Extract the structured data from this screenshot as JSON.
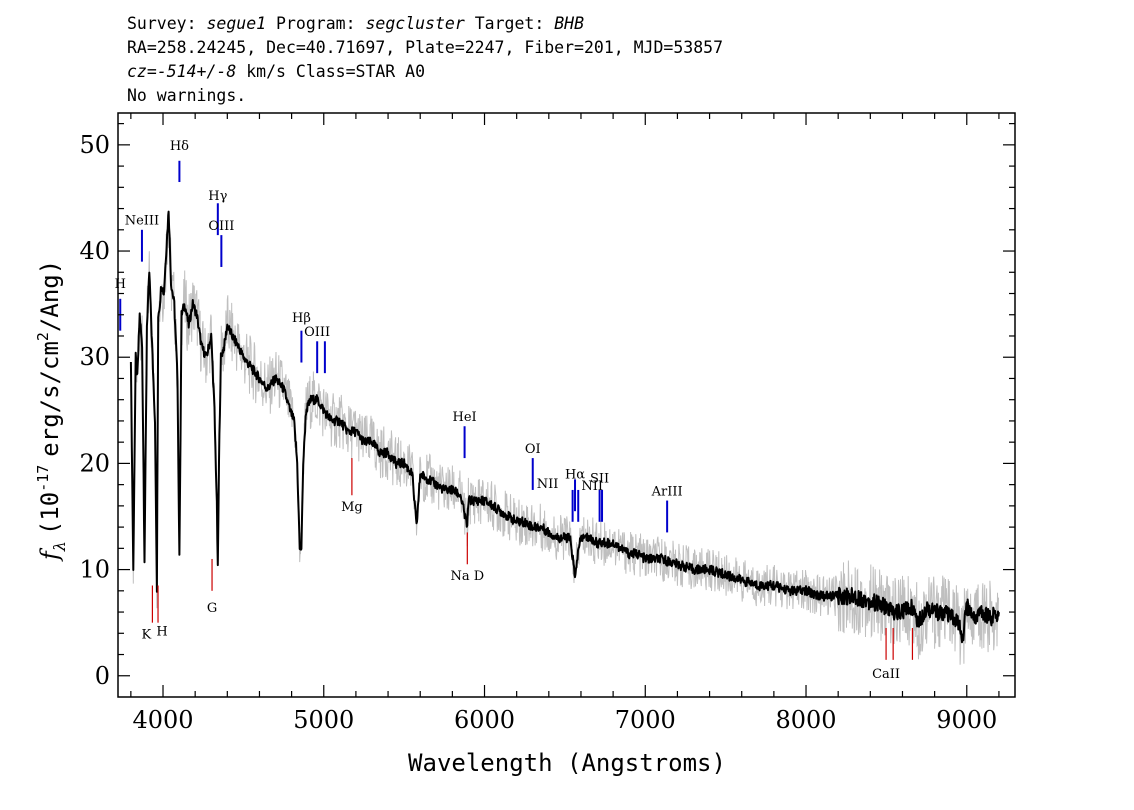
{
  "header": {
    "survey_label": "Survey:",
    "survey": "segue1",
    "program_label": "Program:",
    "program": "segcluster",
    "target_label": "Target:",
    "target": "BHB",
    "line2": "RA=258.24245, Dec=40.71697, Plate=2247, Fiber=201, MJD=53857",
    "cz_prefix": "cz=",
    "cz_value": "-514+/-8",
    "cz_suffix": "km/s Class=STAR A0",
    "warnings": "No warnings."
  },
  "chart_data": {
    "type": "line",
    "xlabel": "Wavelength (Angstroms)",
    "ylabel_prefix": "f",
    "ylabel_sub": "λ",
    "ylabel_units": "(10",
    "ylabel_exp": "-17",
    "ylabel_rest": "erg/s/cm",
    "ylabel_exp2": "2",
    "ylabel_end": "/Ang)",
    "xlim": [
      3720,
      9300
    ],
    "ylim": [
      -2,
      53
    ],
    "xticks": [
      4000,
      5000,
      6000,
      7000,
      8000,
      9000
    ],
    "yticks": [
      0,
      10,
      20,
      30,
      40,
      50
    ],
    "colors": {
      "spectrum": "#000000",
      "noise": "#bfbfbf",
      "emission": "#0000cc",
      "absorption": "#cc0000"
    },
    "series": [
      {
        "style": "spectrum",
        "x": [
          3800,
          3815,
          3830,
          3840,
          3855,
          3870,
          3885,
          3900,
          3915,
          3935,
          3950,
          3962,
          3970,
          3980,
          3990,
          4005,
          4020,
          4035,
          4050,
          4070,
          4090,
          4102,
          4115,
          4135,
          4160,
          4185,
          4210,
          4240,
          4270,
          4300,
          4320,
          4335,
          4341,
          4348,
          4360,
          4380,
          4400,
          4430,
          4470,
          4500,
          4550,
          4600,
          4650,
          4700,
          4750,
          4790,
          4815,
          4835,
          4850,
          4861,
          4872,
          4890,
          4920,
          4960,
          5000,
          5050,
          5100,
          5150,
          5200,
          5250,
          5300,
          5350,
          5400,
          5450,
          5500,
          5550,
          5577,
          5600,
          5650,
          5700,
          5750,
          5800,
          5850,
          5893,
          5900,
          5950,
          6000,
          6050,
          6100,
          6150,
          6200,
          6250,
          6300,
          6350,
          6400,
          6450,
          6500,
          6530,
          6550,
          6563,
          6575,
          6600,
          6650,
          6700,
          6750,
          6800,
          6850,
          6900,
          6950,
          7000,
          7100,
          7200,
          7300,
          7400,
          7500,
          7600,
          7700,
          7800,
          7900,
          8000,
          8100,
          8200,
          8300,
          8400,
          8500,
          8542,
          8600,
          8662,
          8700,
          8750,
          8800,
          8850,
          8900,
          8950,
          8970,
          9000,
          9050,
          9100,
          9150,
          9200
        ],
        "y": [
          30,
          10,
          30,
          28,
          34,
          31,
          11,
          33,
          38,
          30,
          24,
          8,
          34,
          35,
          37,
          36,
          40,
          44,
          37,
          35,
          28,
          11,
          34,
          35,
          33,
          35,
          34,
          31,
          30,
          32,
          25,
          16,
          10,
          20,
          30,
          31,
          33,
          32,
          31,
          30,
          29,
          28,
          27,
          28,
          27,
          25,
          24,
          20,
          12,
          12,
          20,
          25,
          26,
          26,
          25,
          24,
          24,
          23,
          23,
          22,
          22,
          21,
          21,
          20,
          20,
          19,
          14,
          19,
          18.5,
          18,
          17.5,
          17.5,
          17,
          14,
          16.5,
          16.5,
          16.5,
          16,
          15.5,
          15,
          14.5,
          14.5,
          14,
          14,
          13.5,
          13,
          13,
          13,
          11,
          9,
          11,
          13,
          13,
          12.5,
          12.5,
          12.5,
          12,
          11.5,
          11.5,
          11,
          11,
          10.5,
          10,
          10,
          9.5,
          9,
          8.5,
          8.5,
          8,
          8,
          7.5,
          7.5,
          7.5,
          7,
          6.5,
          6,
          6,
          6.5,
          5,
          6.5,
          6,
          6,
          5.5,
          5,
          3,
          6.5,
          5.5,
          6,
          5.5,
          6
        ]
      }
    ],
    "lines": [
      {
        "label": "H",
        "x": 3734,
        "y1": 32.5,
        "y2": 35.5,
        "kind": "emission",
        "label_y": 36.5
      },
      {
        "label": "NeIII",
        "x": 3869,
        "y1": 39,
        "y2": 42,
        "kind": "emission",
        "label_y": 42.5
      },
      {
        "label": "Hδ",
        "x": 4102,
        "y1": 46.5,
        "y2": 48.5,
        "kind": "emission",
        "label_y": 49.5
      },
      {
        "label": "Hγ",
        "x": 4341,
        "y1": 41.5,
        "y2": 44.5,
        "kind": "emission",
        "label_y": 44.8
      },
      {
        "label": "OIII",
        "x": 4363,
        "y1": 38.5,
        "y2": 41.5,
        "kind": "emission",
        "label_y": 42
      },
      {
        "label": "Hβ",
        "x": 4861,
        "y1": 29.5,
        "y2": 32.5,
        "kind": "emission",
        "label_y": 33.3
      },
      {
        "label": "OIII",
        "x": 4959,
        "y1": 28.5,
        "y2": 31.5,
        "kind": "emission",
        "label_y": 32
      },
      {
        "label": "",
        "x": 5007,
        "y1": 28.5,
        "y2": 31.5,
        "kind": "emission"
      },
      {
        "label": "HeI",
        "x": 5876,
        "y1": 20.5,
        "y2": 23.5,
        "kind": "emission",
        "label_y": 24
      },
      {
        "label": "OI",
        "x": 6300,
        "y1": 17.5,
        "y2": 20.5,
        "kind": "emission",
        "label_y": 21
      },
      {
        "label": "NII",
        "x": 6548,
        "y1": 14.5,
        "y2": 17.5,
        "kind": "emission",
        "label_y": 17.7,
        "label_dx": -25
      },
      {
        "label": "Hα",
        "x": 6563,
        "y1": 15.5,
        "y2": 18.5,
        "kind": "emission",
        "label_y": 18.6
      },
      {
        "label": "NII",
        "x": 6583,
        "y1": 14.5,
        "y2": 17.5,
        "kind": "emission",
        "label_y": 17.5,
        "label_dx": 14
      },
      {
        "label": "SII",
        "x": 6716,
        "y1": 14.5,
        "y2": 17.5,
        "kind": "emission",
        "label_y": 18.2
      },
      {
        "label": "",
        "x": 6731,
        "y1": 14.5,
        "y2": 17.5,
        "kind": "emission"
      },
      {
        "label": "ArIII",
        "x": 7136,
        "y1": 13.5,
        "y2": 16.5,
        "kind": "emission",
        "label_y": 17
      },
      {
        "label": "K",
        "x": 3934,
        "y1": 5,
        "y2": 8.5,
        "kind": "absorption",
        "label_y": 3.5,
        "label_dx": -6
      },
      {
        "label": "H",
        "x": 3969,
        "y1": 5,
        "y2": 8.5,
        "kind": "absorption",
        "label_y": 3.8,
        "label_dx": 4
      },
      {
        "label": "G",
        "x": 4305,
        "y1": 8,
        "y2": 11,
        "kind": "absorption",
        "label_y": 6
      },
      {
        "label": "Mg",
        "x": 5175,
        "y1": 17,
        "y2": 20.5,
        "kind": "absorption",
        "label_y": 15.5
      },
      {
        "label": "Na D",
        "x": 5893,
        "y1": 10.5,
        "y2": 13.5,
        "kind": "absorption",
        "label_y": 9
      },
      {
        "label": "CaII",
        "x": 8498,
        "y1": 1.5,
        "y2": 4.5,
        "kind": "absorption",
        "label_y": -0.2
      },
      {
        "label": "",
        "x": 8542,
        "y1": 1.5,
        "y2": 4.5,
        "kind": "absorption"
      },
      {
        "label": "",
        "x": 8662,
        "y1": 1.5,
        "y2": 4.5,
        "kind": "absorption"
      }
    ]
  }
}
